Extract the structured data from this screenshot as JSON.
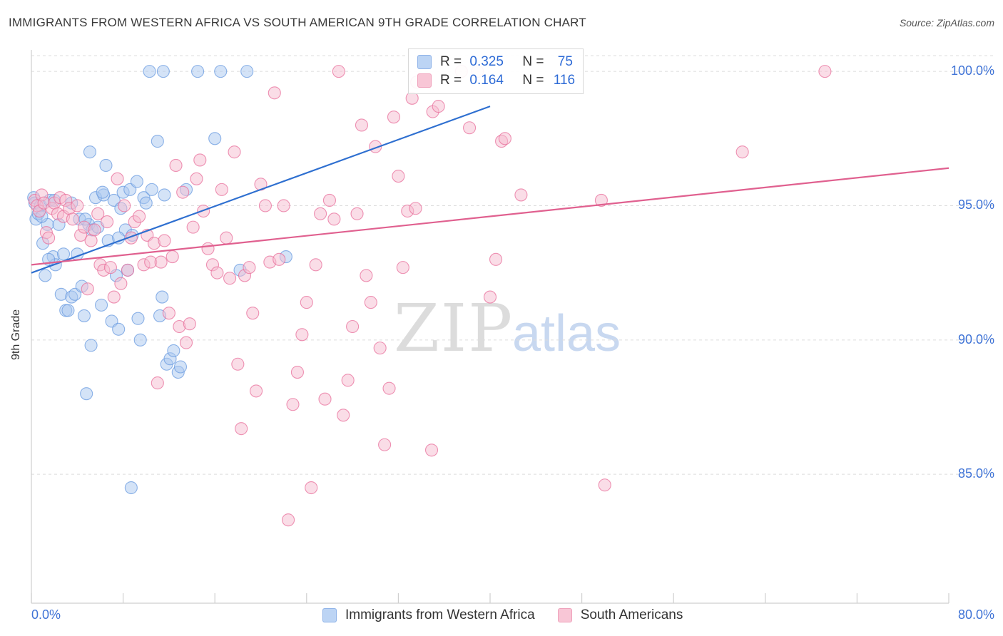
{
  "header": {
    "title": "IMMIGRANTS FROM WESTERN AFRICA VS SOUTH AMERICAN 9TH GRADE CORRELATION CHART",
    "source": "Source: ZipAtlas.com"
  },
  "watermark": {
    "part1": "ZIP",
    "part2": "atlas"
  },
  "legend_top": [
    {
      "r_label": "R =",
      "r_value": "0.325",
      "n_label": "N =",
      "n_value": "75",
      "color": "#9fc3f0"
    },
    {
      "r_label": "R =",
      "r_value": "0.164",
      "n_label": "N =",
      "n_value": "116",
      "color": "#f5b3c8"
    }
  ],
  "legend_bottom": [
    {
      "label": "Immigrants from Western Africa",
      "color": "#9fc3f0"
    },
    {
      "label": "South Americans",
      "color": "#f5b3c8"
    }
  ],
  "chart_data": {
    "type": "scatter",
    "title": "IMMIGRANTS FROM WESTERN AFRICA VS SOUTH AMERICAN 9TH GRADE CORRELATION CHART",
    "xlabel": "",
    "ylabel": "9th Grade",
    "xlim": [
      0,
      80
    ],
    "ylim": [
      80.2,
      100.8
    ],
    "x_tick_labels": [
      "0.0%",
      "80.0%"
    ],
    "y_ticks": [
      85,
      90,
      95,
      100
    ],
    "y_tick_labels": [
      "85.0%",
      "90.0%",
      "95.0%",
      "100.0%"
    ],
    "grid": true,
    "series": [
      {
        "name": "Immigrants from Western Africa",
        "color": "#6a9be0",
        "fill": "#a9c8f0",
        "trend": {
          "x0": 0,
          "y0": 92.5,
          "x1": 40,
          "y1": 98.7
        },
        "points": [
          [
            0.2,
            95.3
          ],
          [
            0.3,
            95.1
          ],
          [
            0.4,
            94.5
          ],
          [
            0.6,
            94.7
          ],
          [
            0.8,
            95.0
          ],
          [
            1.0,
            93.6
          ],
          [
            1.2,
            92.4
          ],
          [
            1.4,
            94.3
          ],
          [
            1.6,
            95.2
          ],
          [
            1.9,
            93.1
          ],
          [
            2.1,
            92.8
          ],
          [
            2.4,
            94.3
          ],
          [
            2.6,
            91.7
          ],
          [
            2.8,
            93.2
          ],
          [
            3.0,
            91.1
          ],
          [
            3.2,
            91.1
          ],
          [
            3.5,
            91.6
          ],
          [
            3.8,
            91.7
          ],
          [
            4.0,
            93.2
          ],
          [
            4.2,
            94.5
          ],
          [
            4.4,
            92.0
          ],
          [
            4.6,
            90.9
          ],
          [
            4.8,
            88.0
          ],
          [
            5.0,
            94.3
          ],
          [
            5.2,
            89.8
          ],
          [
            5.3,
            94.1
          ],
          [
            5.6,
            95.3
          ],
          [
            5.8,
            94.2
          ],
          [
            6.1,
            91.3
          ],
          [
            6.3,
            95.4
          ],
          [
            6.5,
            96.5
          ],
          [
            6.7,
            93.7
          ],
          [
            7.0,
            90.7
          ],
          [
            7.2,
            95.2
          ],
          [
            7.4,
            92.4
          ],
          [
            7.6,
            90.4
          ],
          [
            7.8,
            94.9
          ],
          [
            8.0,
            95.5
          ],
          [
            8.2,
            94.1
          ],
          [
            8.4,
            92.6
          ],
          [
            8.6,
            95.6
          ],
          [
            8.8,
            93.9
          ],
          [
            9.3,
            90.8
          ],
          [
            9.5,
            90.0
          ],
          [
            9.8,
            95.3
          ],
          [
            10.0,
            95.1
          ],
          [
            10.3,
            100.0
          ],
          [
            11.0,
            97.4
          ],
          [
            11.2,
            90.9
          ],
          [
            11.4,
            91.6
          ],
          [
            11.6,
            95.4
          ],
          [
            11.8,
            89.1
          ],
          [
            12.1,
            89.3
          ],
          [
            12.4,
            89.6
          ],
          [
            12.8,
            88.8
          ],
          [
            13.0,
            89.0
          ],
          [
            13.5,
            95.6
          ],
          [
            14.5,
            100.0
          ],
          [
            16.0,
            97.5
          ],
          [
            16.5,
            100.0
          ],
          [
            18.8,
            100.0
          ],
          [
            18.2,
            92.6
          ],
          [
            22.2,
            93.1
          ],
          [
            5.1,
            97.0
          ],
          [
            11.5,
            100.0
          ],
          [
            2.0,
            95.2
          ],
          [
            3.5,
            95.1
          ],
          [
            6.2,
            95.5
          ],
          [
            7.6,
            93.8
          ],
          [
            4.7,
            94.5
          ],
          [
            1.5,
            93.0
          ],
          [
            9.2,
            95.9
          ],
          [
            0.9,
            94.6
          ],
          [
            8.7,
            84.5
          ],
          [
            10.5,
            95.6
          ]
        ]
      },
      {
        "name": "South Americans",
        "color": "#e86f9b",
        "fill": "#f6bcd0",
        "trend": {
          "x0": 0,
          "y0": 92.8,
          "x1": 80,
          "y1": 96.4
        },
        "points": [
          [
            0.3,
            95.2
          ],
          [
            0.5,
            95.0
          ],
          [
            0.7,
            94.8
          ],
          [
            0.9,
            95.4
          ],
          [
            1.1,
            95.1
          ],
          [
            1.3,
            94.0
          ],
          [
            1.5,
            93.8
          ],
          [
            1.8,
            94.9
          ],
          [
            2.0,
            95.1
          ],
          [
            2.3,
            94.7
          ],
          [
            2.5,
            95.3
          ],
          [
            2.8,
            94.6
          ],
          [
            3.0,
            95.2
          ],
          [
            3.3,
            94.9
          ],
          [
            3.6,
            94.5
          ],
          [
            4.0,
            95.0
          ],
          [
            4.3,
            93.9
          ],
          [
            4.6,
            94.2
          ],
          [
            4.9,
            91.9
          ],
          [
            5.2,
            93.7
          ],
          [
            5.5,
            94.1
          ],
          [
            5.8,
            94.7
          ],
          [
            6.0,
            92.8
          ],
          [
            6.3,
            92.6
          ],
          [
            6.6,
            94.4
          ],
          [
            6.9,
            92.7
          ],
          [
            7.2,
            91.6
          ],
          [
            7.5,
            96.0
          ],
          [
            7.8,
            92.1
          ],
          [
            8.1,
            95.0
          ],
          [
            8.4,
            92.6
          ],
          [
            8.7,
            93.8
          ],
          [
            9.0,
            94.4
          ],
          [
            9.4,
            94.6
          ],
          [
            9.8,
            92.8
          ],
          [
            10.1,
            93.9
          ],
          [
            10.4,
            92.9
          ],
          [
            10.7,
            93.6
          ],
          [
            11.0,
            88.4
          ],
          [
            11.3,
            92.9
          ],
          [
            11.6,
            93.7
          ],
          [
            12.0,
            91.0
          ],
          [
            12.3,
            93.1
          ],
          [
            12.6,
            96.5
          ],
          [
            12.9,
            90.5
          ],
          [
            13.2,
            95.5
          ],
          [
            13.5,
            89.9
          ],
          [
            13.8,
            90.6
          ],
          [
            14.1,
            94.2
          ],
          [
            14.4,
            96.0
          ],
          [
            14.7,
            96.7
          ],
          [
            15.0,
            94.8
          ],
          [
            15.4,
            93.4
          ],
          [
            15.8,
            92.8
          ],
          [
            16.2,
            92.5
          ],
          [
            16.6,
            95.6
          ],
          [
            17.0,
            93.8
          ],
          [
            17.3,
            92.3
          ],
          [
            17.7,
            97.0
          ],
          [
            18.0,
            89.1
          ],
          [
            18.3,
            86.7
          ],
          [
            18.6,
            92.4
          ],
          [
            19.0,
            92.7
          ],
          [
            19.3,
            91.0
          ],
          [
            19.6,
            88.1
          ],
          [
            20.0,
            95.8
          ],
          [
            20.4,
            95.0
          ],
          [
            20.8,
            92.9
          ],
          [
            21.2,
            99.2
          ],
          [
            21.6,
            93.0
          ],
          [
            22.0,
            95.0
          ],
          [
            22.4,
            83.3
          ],
          [
            22.8,
            87.6
          ],
          [
            23.2,
            88.8
          ],
          [
            23.6,
            90.2
          ],
          [
            24.0,
            91.4
          ],
          [
            24.4,
            84.5
          ],
          [
            24.8,
            92.8
          ],
          [
            25.2,
            94.7
          ],
          [
            25.6,
            87.8
          ],
          [
            26.0,
            95.2
          ],
          [
            26.4,
            94.5
          ],
          [
            26.8,
            100.0
          ],
          [
            27.2,
            87.2
          ],
          [
            27.6,
            88.5
          ],
          [
            28.0,
            90.5
          ],
          [
            28.4,
            94.7
          ],
          [
            28.8,
            98.0
          ],
          [
            29.2,
            92.4
          ],
          [
            29.6,
            91.4
          ],
          [
            30.0,
            97.2
          ],
          [
            30.4,
            89.7
          ],
          [
            30.8,
            86.1
          ],
          [
            31.2,
            88.2
          ],
          [
            31.6,
            98.3
          ],
          [
            32.0,
            96.1
          ],
          [
            32.4,
            92.7
          ],
          [
            32.8,
            94.8
          ],
          [
            33.2,
            99.0
          ],
          [
            33.6,
            99.6
          ],
          [
            34.9,
            85.9
          ],
          [
            35.0,
            98.5
          ],
          [
            35.5,
            98.7
          ],
          [
            37.5,
            100.0
          ],
          [
            38.2,
            97.9
          ],
          [
            38.9,
            100.0
          ],
          [
            40.0,
            91.6
          ],
          [
            40.5,
            93.0
          ],
          [
            41.0,
            97.4
          ],
          [
            42.7,
            95.4
          ],
          [
            50.0,
            84.6
          ],
          [
            49.7,
            95.2
          ],
          [
            62.0,
            97.0
          ],
          [
            69.2,
            100.0
          ],
          [
            41.3,
            97.5
          ],
          [
            33.5,
            94.9
          ]
        ]
      }
    ]
  }
}
